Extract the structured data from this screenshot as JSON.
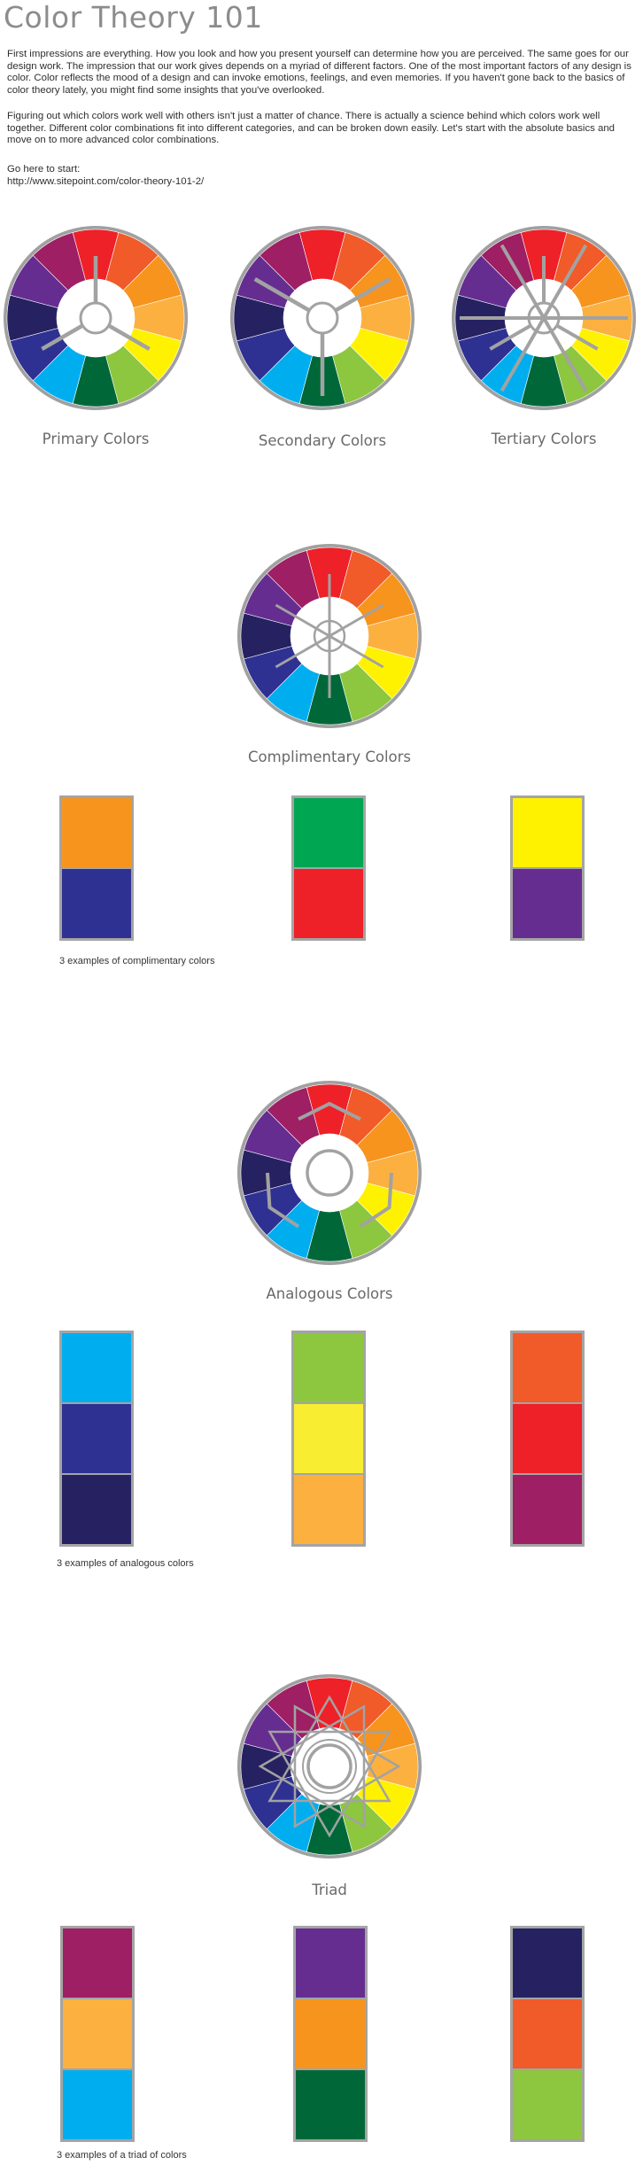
{
  "header": {
    "title": "Color Theory 101",
    "intro_1": "First impressions are everything. How you look and how you present yourself can determine how you are perceived. The same goes for our design work. The impression that our work gives depends on a myriad of different factors. One of the most important factors of any design is color. Color reflects the mood of a design and can invoke emotions, feelings, and even memories. If you haven't gone back to the basics of color theory lately, you might find some insights that you've overlooked.",
    "intro_2": "Figuring out which colors work well with others isn't just a matter of chance. There is actually a science behind which colors work well together. Different color combinations fit into different categories, and can be broken down easily. Let's start with the absolute basics and move on to more advanced color combinations.",
    "start_label": "Go here to start:",
    "start_url": "http://www.sitepoint.com/color-theory-101-2/"
  },
  "wheel_colors": [
    "#ee2028",
    "#f15a29",
    "#f7941d",
    "#fbb040",
    "#fff200",
    "#8dc63f",
    "#006838",
    "#00aeef",
    "#2e3192",
    "#262262",
    "#662d91",
    "#9e1f63"
  ],
  "wheels": {
    "primary": {
      "label": "Primary Colors",
      "overlay": "primary-spokes"
    },
    "secondary": {
      "label": "Secondary Colors",
      "overlay": "secondary-spokes"
    },
    "tertiary": {
      "label": "Tertiary Colors",
      "overlay": "tertiary-spokes"
    },
    "complementary": {
      "label": "Complimentary Colors",
      "overlay": "complementary-spokes"
    },
    "analogous": {
      "label": "Analogous Colors",
      "overlay": "analogous-chevrons"
    },
    "triad": {
      "label": "Triad",
      "overlay": "triad-stars"
    }
  },
  "complementary_examples": {
    "caption": "3 examples of complimentary colors",
    "sets": [
      [
        "#f7941d",
        "#2e3192"
      ],
      [
        "#00a651",
        "#ee2028"
      ],
      [
        "#fff200",
        "#662d91"
      ]
    ]
  },
  "analogous_examples": {
    "caption": "3 examples of analogous colors",
    "sets": [
      [
        "#00aeef",
        "#2e3192",
        "#262262"
      ],
      [
        "#8dc63f",
        "#f9ed32",
        "#fbb040"
      ],
      [
        "#f15a29",
        "#ee2028",
        "#9e1f63"
      ]
    ]
  },
  "triad_examples": {
    "caption": "3 examples of a triad of colors",
    "sets": [
      [
        "#9e1f63",
        "#fbb040",
        "#00aeef"
      ],
      [
        "#662d91",
        "#f7941d",
        "#006838"
      ],
      [
        "#262262",
        "#f15a29",
        "#8dc63f"
      ]
    ]
  }
}
